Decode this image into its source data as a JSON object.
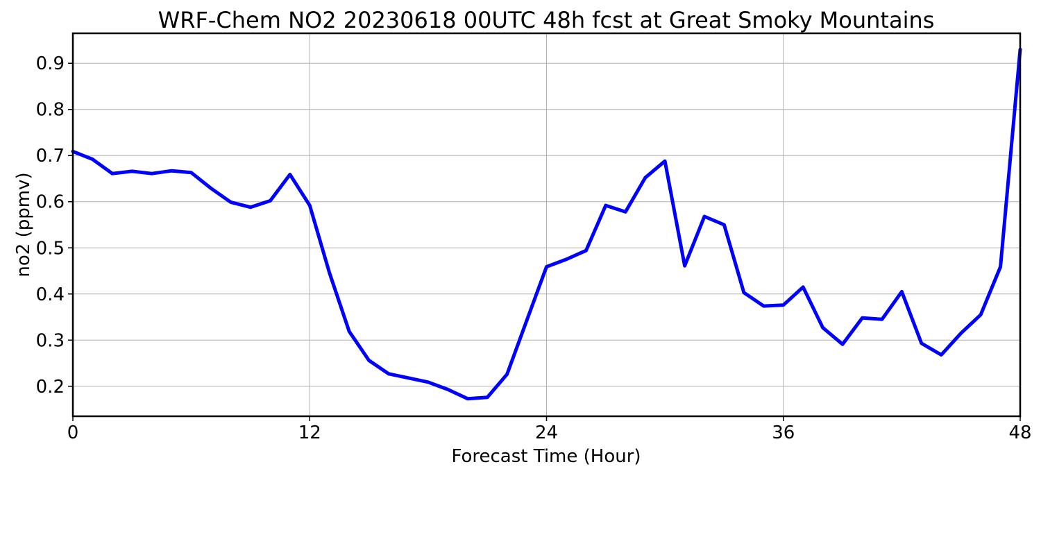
{
  "chart_data": {
    "type": "line",
    "title": "WRF-Chem NO2  20230618 00UTC 48h fcst at Great Smoky Mountains",
    "xlabel": "Forecast Time (Hour)",
    "ylabel": "no2  (ppmv)",
    "xlim": [
      0,
      48
    ],
    "ylim": [
      0.135,
      0.965
    ],
    "xticks": [
      0,
      12,
      24,
      36,
      48
    ],
    "xtick_labels": [
      "0",
      "12",
      "24",
      "36",
      "48"
    ],
    "yticks": [
      0.2,
      0.3,
      0.4,
      0.5,
      0.6,
      0.7,
      0.8,
      0.9
    ],
    "ytick_labels": [
      "0.2",
      "0.3",
      "0.4",
      "0.5",
      "0.6",
      "0.7",
      "0.8",
      "0.9"
    ],
    "grid": true,
    "color": "#0000ff",
    "x": [
      0,
      1,
      2,
      3,
      4,
      5,
      6,
      7,
      8,
      9,
      10,
      11,
      12,
      13,
      14,
      15,
      16,
      17,
      18,
      19,
      20,
      21,
      22,
      23,
      24,
      25,
      26,
      27,
      28,
      29,
      30,
      31,
      32,
      33,
      34,
      35,
      36,
      37,
      38,
      39,
      40,
      41,
      42,
      43,
      44,
      45,
      46,
      47,
      48
    ],
    "y": [
      0.709,
      0.692,
      0.661,
      0.666,
      0.661,
      0.667,
      0.663,
      0.629,
      0.599,
      0.588,
      0.602,
      0.659,
      0.592,
      0.446,
      0.319,
      0.256,
      0.227,
      0.218,
      0.209,
      0.193,
      0.173,
      0.176,
      0.226,
      0.343,
      0.459,
      0.475,
      0.494,
      0.592,
      0.578,
      0.652,
      0.688,
      0.461,
      0.568,
      0.55,
      0.403,
      0.374,
      0.376,
      0.415,
      0.327,
      0.291,
      0.348,
      0.345,
      0.405,
      0.293,
      0.268,
      0.315,
      0.355,
      0.459,
      0.93
    ]
  }
}
